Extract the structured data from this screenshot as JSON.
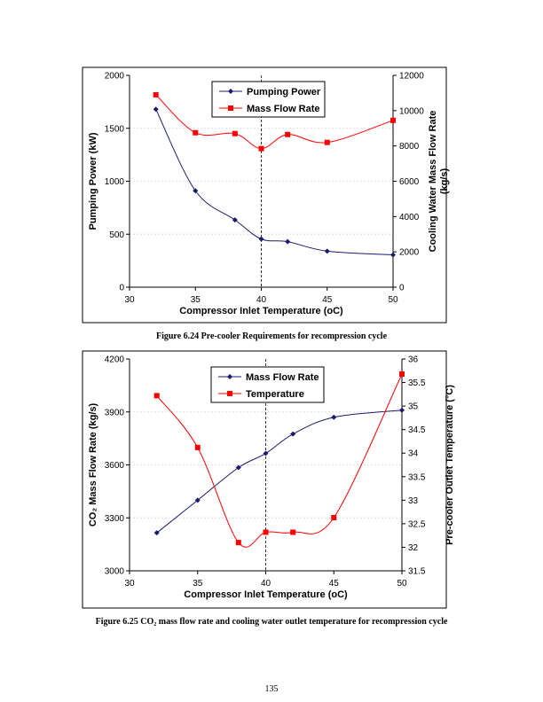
{
  "chart_data": [
    {
      "type": "line",
      "xlabel": "Compressor Inlet Temperature (oC)",
      "ylabel": "Pumping Power (kW)",
      "ylabel_right": [
        "Cooling Water Mass Flow Rate",
        "(kg/s)"
      ],
      "xlim": [
        30,
        50
      ],
      "ylim": [
        0,
        2000
      ],
      "ylim_right": [
        0,
        12000
      ],
      "xticks": [
        30,
        35,
        40,
        45,
        50
      ],
      "yticks": [
        0,
        500,
        1000,
        1500,
        2000
      ],
      "yticks_right": [
        0,
        2000,
        4000,
        6000,
        8000,
        10000,
        12000
      ],
      "grid": true,
      "legend": "top-center",
      "reference_line_x": 40,
      "x": [
        32,
        35,
        38,
        40,
        42,
        45,
        50
      ],
      "series": [
        {
          "name": "Pumping Power",
          "axis": "left",
          "color": "#1a1a6e",
          "marker": "diamond",
          "values": [
            1680,
            910,
            635,
            455,
            430,
            340,
            305
          ]
        },
        {
          "name": "Mass Flow Rate",
          "axis": "right",
          "color": "#ff0000",
          "marker": "square",
          "values": [
            10900,
            8750,
            8700,
            7850,
            8650,
            8200,
            9450
          ]
        }
      ]
    },
    {
      "type": "line",
      "xlabel": "Compressor Inlet Temperature (oC)",
      "ylabel": "CO₂ Mass Flow Rate (kg/s)",
      "ylabel_right": [
        "Pre-cooler Outlet Temperature (°C)"
      ],
      "xlim": [
        30,
        50
      ],
      "ylim": [
        3000,
        4200
      ],
      "ylim_right": [
        31.5,
        36
      ],
      "xticks": [
        30,
        35,
        40,
        45,
        50
      ],
      "yticks": [
        3000,
        3300,
        3600,
        3900,
        4200
      ],
      "yticks_right": [
        31.5,
        32,
        32.5,
        33,
        33.5,
        34,
        34.5,
        35,
        35.5,
        36
      ],
      "grid": true,
      "legend": "top-center",
      "reference_line_x": 40,
      "x": [
        32,
        35,
        38,
        40,
        42,
        45,
        50
      ],
      "series": [
        {
          "name": "Mass Flow Rate",
          "axis": "left",
          "color": "#1a1a6e",
          "marker": "diamond",
          "values": [
            3215,
            3400,
            3585,
            3665,
            3775,
            3870,
            3910
          ]
        },
        {
          "name": "Temperature",
          "axis": "right",
          "color": "#ff0000",
          "marker": "square",
          "values": [
            35.22,
            34.12,
            32.1,
            32.32,
            32.32,
            32.63,
            35.68
          ]
        }
      ]
    }
  ],
  "captions": [
    "Figure 6.24 Pre-cooler Requirements for recompression cycle",
    "Figure 6.25 CO₂ mass flow rate and cooling water outlet temperature for recompression cycle"
  ],
  "page_number": "135"
}
